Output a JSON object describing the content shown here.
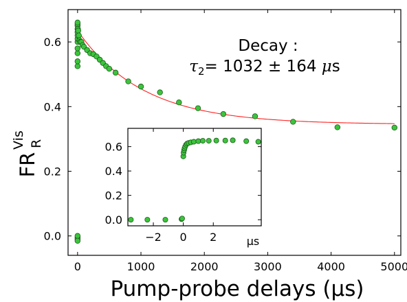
{
  "chart_data": [
    {
      "type": "scatter",
      "title": "",
      "xlabel": "Pump-probe delays (µs)",
      "ylabel": {
        "main": "FR",
        "sub": "R",
        "sup": "Vis"
      },
      "xlim": [
        -150,
        5100
      ],
      "ylim": [
        -0.06,
        0.7
      ],
      "xticks": [
        0,
        1000,
        2000,
        3000,
        4000,
        5000
      ],
      "xtick_labels": [
        "0",
        "1000",
        "2000",
        "3000",
        "4000",
        "5000"
      ],
      "yticks": [
        0.0,
        0.2,
        0.4,
        0.6
      ],
      "ytick_labels": [
        "0.0",
        "0.2",
        "0.4",
        "0.6"
      ],
      "grid": false,
      "annotation": {
        "line1": "Decay :",
        "tau": "τ",
        "tau_sub": "2",
        "value": "= 1032 ± 164 ",
        "mu": "μ",
        "unit": "s"
      },
      "fit": {
        "type": "exponential",
        "offset": 0.345,
        "amplitude": 0.29,
        "tau": 1032,
        "x_range": [
          0,
          5000
        ],
        "color": "#ff2020"
      },
      "series": [
        {
          "color": "#3cc43c",
          "points": [
            [
              0,
              -0.005
            ],
            [
              0,
              -0.01
            ],
            [
              0,
              0.0
            ],
            [
              0,
              -0.015
            ],
            [
              0,
              0.525
            ],
            [
              0,
              0.54
            ],
            [
              0,
              0.565
            ],
            [
              0,
              0.58
            ],
            [
              0,
              0.6
            ],
            [
              0,
              0.61
            ],
            [
              0,
              0.62
            ],
            [
              0,
              0.63
            ],
            [
              0,
              0.64
            ],
            [
              0,
              0.65
            ],
            [
              0,
              0.655
            ],
            [
              0,
              0.66
            ],
            [
              5,
              0.64
            ],
            [
              10,
              0.635
            ],
            [
              20,
              0.62
            ],
            [
              30,
              0.605
            ],
            [
              40,
              0.6
            ],
            [
              60,
              0.6
            ],
            [
              80,
              0.59
            ],
            [
              100,
              0.585
            ],
            [
              150,
              0.575
            ],
            [
              200,
              0.565
            ],
            [
              250,
              0.562
            ],
            [
              300,
              0.555
            ],
            [
              350,
              0.545
            ],
            [
              400,
              0.535
            ],
            [
              450,
              0.525
            ],
            [
              500,
              0.517
            ],
            [
              600,
              0.505
            ],
            [
              800,
              0.478
            ],
            [
              1000,
              0.462
            ],
            [
              1300,
              0.444
            ],
            [
              1600,
              0.413
            ],
            [
              1900,
              0.395
            ],
            [
              2300,
              0.377
            ],
            [
              2800,
              0.37
            ],
            [
              3400,
              0.353
            ],
            [
              4100,
              0.336
            ],
            [
              5000,
              0.335
            ]
          ]
        }
      ]
    },
    {
      "type": "scatter",
      "title": "",
      "xlabel": "µs",
      "ylabel": "",
      "xlim": [
        -3.7,
        5.2
      ],
      "ylim": [
        -0.05,
        0.75
      ],
      "xticks": [
        -2,
        0,
        2
      ],
      "xtick_labels": [
        "−2",
        "0",
        "2"
      ],
      "yticks": [
        0.0,
        0.2,
        0.4,
        0.6
      ],
      "ytick_labels": [
        "0.0",
        "0.2",
        "0.4",
        "0.6"
      ],
      "grid": false,
      "series": [
        {
          "color": "#3cc43c",
          "points": [
            [
              -3.5,
              0.0
            ],
            [
              -2.4,
              0.0
            ],
            [
              -1.2,
              0.0
            ],
            [
              -0.12,
              0.005
            ],
            [
              -0.08,
              0.01
            ],
            [
              0.0,
              0.52
            ],
            [
              0.02,
              0.55
            ],
            [
              0.05,
              0.57
            ],
            [
              0.08,
              0.585
            ],
            [
              0.12,
              0.6
            ],
            [
              0.18,
              0.615
            ],
            [
              0.25,
              0.625
            ],
            [
              0.35,
              0.63
            ],
            [
              0.5,
              0.635
            ],
            [
              0.7,
              0.64
            ],
            [
              1.0,
              0.645
            ],
            [
              1.3,
              0.648
            ],
            [
              1.7,
              0.648
            ],
            [
              2.2,
              0.65
            ],
            [
              2.8,
              0.65
            ],
            [
              3.3,
              0.652
            ],
            [
              4.2,
              0.645
            ],
            [
              5.0,
              0.64
            ]
          ]
        }
      ]
    }
  ]
}
